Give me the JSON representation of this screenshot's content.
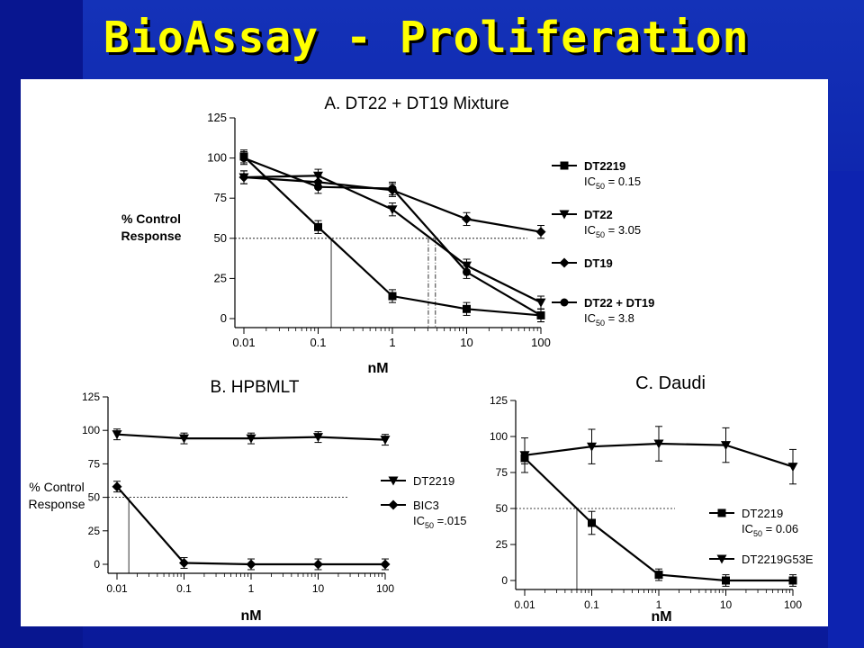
{
  "slide": {
    "title": "BioAssay - Proliferation"
  },
  "chart_data": [
    {
      "type": "line",
      "title": "A. DT22 + DT19 Mixture",
      "xlabel": "nM",
      "ylabel": [
        "% Control",
        "Response"
      ],
      "xscale": "log",
      "xlim": [
        0.01,
        100
      ],
      "ylim": [
        0,
        125
      ],
      "xticks": [
        "0.01",
        "0.1",
        "1",
        "10",
        "100"
      ],
      "yticks": [
        "0",
        "25",
        "50",
        "75",
        "100",
        "125"
      ],
      "series": [
        {
          "name": "DT2219",
          "ic50_text": "= 0.15",
          "marker": "square",
          "x": [
            0.01,
            0.1,
            1,
            10,
            100
          ],
          "y": [
            101,
            57,
            14,
            6,
            2
          ]
        },
        {
          "name": "DT22",
          "ic50_text": "= 3.05",
          "marker": "triangle-down",
          "x": [
            0.01,
            0.1,
            1,
            10,
            100
          ],
          "y": [
            88,
            89,
            68,
            33,
            10
          ]
        },
        {
          "name": "DT19",
          "marker": "diamond",
          "x": [
            0.01,
            0.1,
            1,
            10,
            100
          ],
          "y": [
            88,
            85,
            80,
            62,
            54
          ]
        },
        {
          "name": "DT22 + DT19",
          "ic50_text": "= 3.8",
          "marker": "circle",
          "x": [
            0.01,
            0.1,
            1,
            10,
            100
          ],
          "y": [
            100,
            82,
            81,
            29,
            2
          ]
        }
      ],
      "ic50_guides": [
        0.15,
        3.05,
        3.8
      ],
      "legend": "right"
    },
    {
      "type": "line",
      "title": "B. HPBMLT",
      "xlabel": "nM",
      "ylabel": [
        "% Control",
        "Response"
      ],
      "xscale": "log",
      "xlim": [
        0.01,
        100
      ],
      "ylim": [
        0,
        125
      ],
      "xticks": [
        "0.01",
        "0.1",
        "1",
        "10",
        "100"
      ],
      "yticks": [
        "0",
        "25",
        "50",
        "75",
        "100",
        "125"
      ],
      "series": [
        {
          "name": "DT2219",
          "marker": "triangle-down",
          "x": [
            0.01,
            0.1,
            1,
            10,
            100
          ],
          "y": [
            97,
            94,
            94,
            95,
            93
          ]
        },
        {
          "name": "BIC3",
          "ic50_text": "=.015",
          "marker": "diamond",
          "x": [
            0.01,
            0.1,
            1,
            10,
            100
          ],
          "y": [
            58,
            1,
            0,
            0,
            0
          ]
        }
      ],
      "ic50_guides": [
        0.015
      ],
      "legend": "right"
    },
    {
      "type": "line",
      "title": "C. Daudi",
      "xlabel": "nM",
      "xscale": "log",
      "xlim": [
        0.01,
        100
      ],
      "ylim": [
        0,
        125
      ],
      "xticks": [
        "0.01",
        "0.1",
        "1",
        "10",
        "100"
      ],
      "yticks": [
        "0",
        "25",
        "50",
        "75",
        "100",
        "125"
      ],
      "series": [
        {
          "name": "DT2219",
          "ic50_text": "= 0.06",
          "marker": "square",
          "x": [
            0.01,
            0.1,
            1,
            10,
            100
          ],
          "y": [
            85,
            40,
            4,
            0,
            0
          ]
        },
        {
          "name": "DT2219G53E",
          "marker": "triangle-down",
          "x": [
            0.01,
            0.1,
            1,
            10,
            100
          ],
          "y": [
            87,
            93,
            95,
            94,
            79
          ]
        }
      ],
      "ic50_guides": [
        0.06
      ],
      "legend": "right"
    }
  ]
}
